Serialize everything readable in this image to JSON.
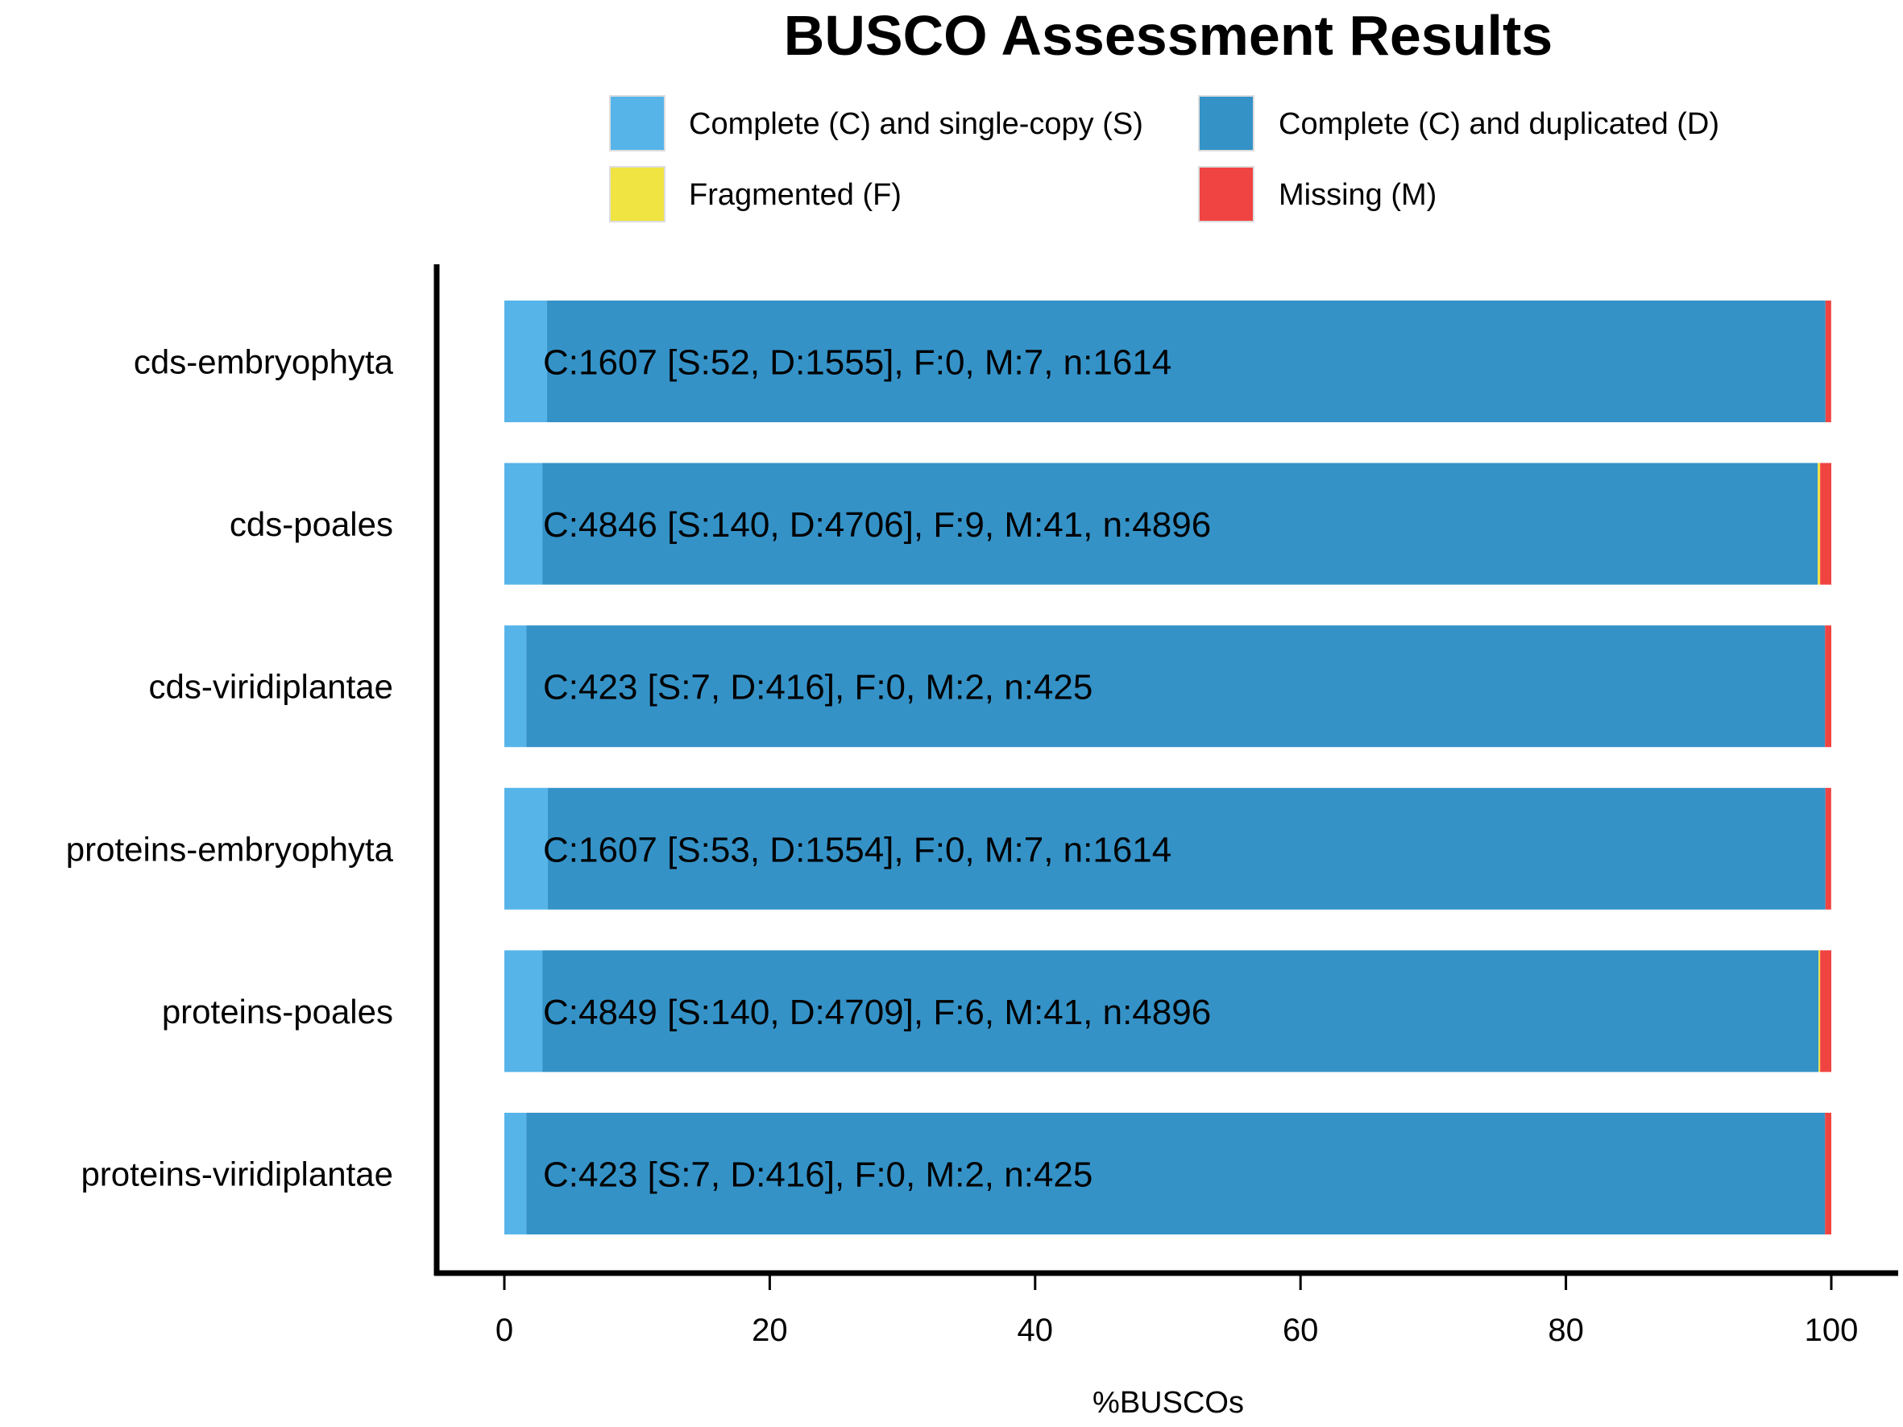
{
  "chart_data": {
    "type": "bar",
    "orientation": "horizontal",
    "stacked": true,
    "title": "BUSCO Assessment Results",
    "xlabel": "%BUSCOs",
    "ylabel": "",
    "xlim": [
      0,
      100
    ],
    "xticks": [
      0,
      20,
      40,
      60,
      80,
      100
    ],
    "legend_position": "top",
    "categories": [
      "cds-embryophyta",
      "cds-poales",
      "cds-viridiplantae",
      "proteins-embryophyta",
      "proteins-poales",
      "proteins-viridiplantae"
    ],
    "series": [
      {
        "name": "Complete (C) and single-copy (S)",
        "color": "#56b4e9",
        "values": [
          3.22,
          2.86,
          1.65,
          3.28,
          2.86,
          1.65
        ]
      },
      {
        "name": "Complete (C) and duplicated (D)",
        "color": "#3492c7",
        "values": [
          96.34,
          96.12,
          97.88,
          96.28,
          96.18,
          97.88
        ]
      },
      {
        "name": "Fragmented (F)",
        "color": "#f0e442",
        "values": [
          0.0,
          0.18,
          0.0,
          0.0,
          0.12,
          0.0
        ]
      },
      {
        "name": "Missing (M)",
        "color": "#f04442",
        "values": [
          0.43,
          0.84,
          0.47,
          0.43,
          0.84,
          0.47
        ]
      }
    ],
    "bar_labels": [
      "C:1607 [S:52, D:1555], F:0, M:7, n:1614",
      "C:4846 [S:140, D:4706], F:9, M:41, n:4896",
      "C:423 [S:7, D:416], F:0, M:2, n:425",
      "C:1607 [S:53, D:1554], F:0, M:7, n:1614",
      "C:4849 [S:140, D:4709], F:6, M:41, n:4896",
      "C:423 [S:7, D:416], F:0, M:2, n:425"
    ]
  }
}
